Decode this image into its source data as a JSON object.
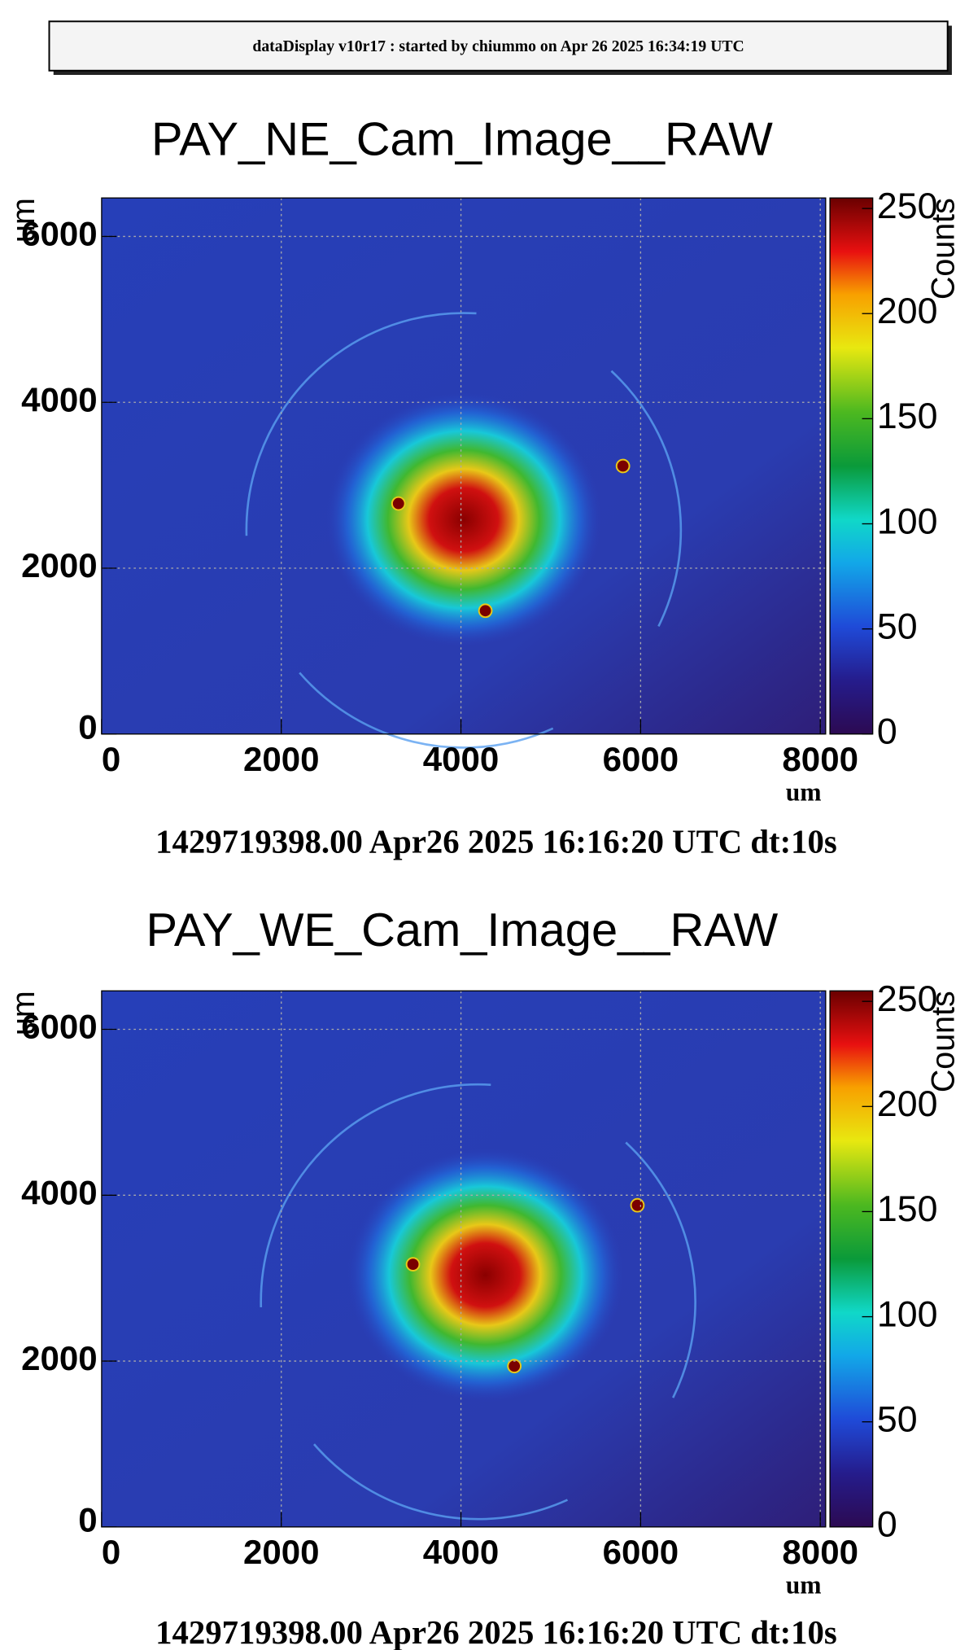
{
  "header": "dataDisplay v10r17 : started by chiummo on Apr 26 2025 16:34:19 UTC",
  "chart_data": [
    {
      "type": "heatmap",
      "title": "PAY_NE_Cam_Image__RAW",
      "xlabel": "um",
      "ylabel": "um",
      "zlabel": "Counts",
      "xlim": [
        0,
        8060
      ],
      "ylim": [
        0,
        6464
      ],
      "zlim": [
        0,
        255
      ],
      "xticks": [
        0,
        2000,
        4000,
        6000,
        8000
      ],
      "yticks": [
        0,
        2000,
        4000,
        6000
      ],
      "zticks": [
        0,
        50,
        100,
        150,
        200,
        250
      ],
      "grid": true,
      "footer": "1429719398.00 Apr26 2025 16:16:20 UTC dt:10s"
    },
    {
      "type": "heatmap",
      "title": "PAY_WE_Cam_Image__RAW",
      "xlabel": "um",
      "ylabel": "um",
      "zlabel": "Counts",
      "xlim": [
        0,
        8060
      ],
      "ylim": [
        0,
        6464
      ],
      "zlim": [
        0,
        255
      ],
      "xticks": [
        0,
        2000,
        4000,
        6000,
        8000
      ],
      "yticks": [
        0,
        2000,
        4000,
        6000
      ],
      "zticks": [
        0,
        50,
        100,
        150,
        200,
        250
      ],
      "grid": true,
      "footer": "1429719398.00 Apr26 2025 16:16:20 UTC dt:10s"
    }
  ]
}
